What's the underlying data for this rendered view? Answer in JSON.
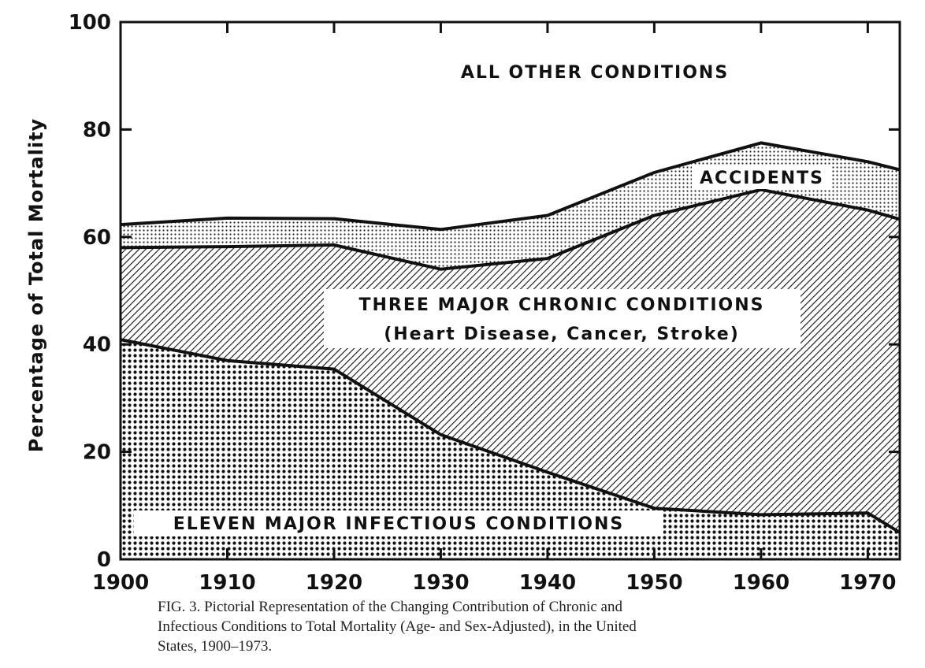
{
  "chart_data": {
    "type": "area",
    "ylabel": "Percentage of Total Mortality",
    "xlim": [
      1900,
      1973
    ],
    "ylim": [
      0,
      100
    ],
    "x_ticks": [
      1900,
      1910,
      1920,
      1930,
      1940,
      1950,
      1960,
      1970
    ],
    "y_ticks": [
      0,
      20,
      40,
      60,
      80,
      100
    ],
    "stacked": true,
    "series": [
      {
        "name": "ELEVEN MAJOR INFECTIOUS CONDITIONS",
        "pattern": "dots",
        "x": [
          1900,
          1910,
          1920,
          1930,
          1940,
          1950,
          1960,
          1970,
          1973
        ],
        "cumulative_top": [
          40.9,
          37.0,
          35.4,
          23.2,
          16.2,
          9.5,
          8.3,
          8.6,
          5.0
        ]
      },
      {
        "name": "THREE MAJOR CHRONIC CONDITIONS",
        "sublabel": "(Heart Disease, Cancer, Stroke)",
        "pattern": "hatch",
        "x": [
          1900,
          1910,
          1920,
          1930,
          1940,
          1950,
          1960,
          1970,
          1973
        ],
        "cumulative_top": [
          58.0,
          58.2,
          58.5,
          54.0,
          56.0,
          64.0,
          68.8,
          65.0,
          63.3
        ]
      },
      {
        "name": "ACCIDENTS",
        "pattern": "fine-dots",
        "x": [
          1900,
          1910,
          1920,
          1930,
          1940,
          1950,
          1960,
          1970,
          1973
        ],
        "cumulative_top": [
          62.3,
          63.5,
          63.4,
          61.4,
          64.0,
          72.0,
          77.5,
          74.0,
          72.5
        ]
      },
      {
        "name": "ALL OTHER CONDITIONS",
        "pattern": "none",
        "x": [
          1900,
          1973
        ],
        "cumulative_top": [
          100,
          100
        ]
      }
    ]
  },
  "caption": {
    "lines": [
      "FIG. 3. Pictorial Representation of the Changing Contribution of Chronic and",
      "Infectious Conditions to Total Mortality (Age- and Sex-Adjusted), in the United",
      "States, 1900–1973."
    ]
  }
}
